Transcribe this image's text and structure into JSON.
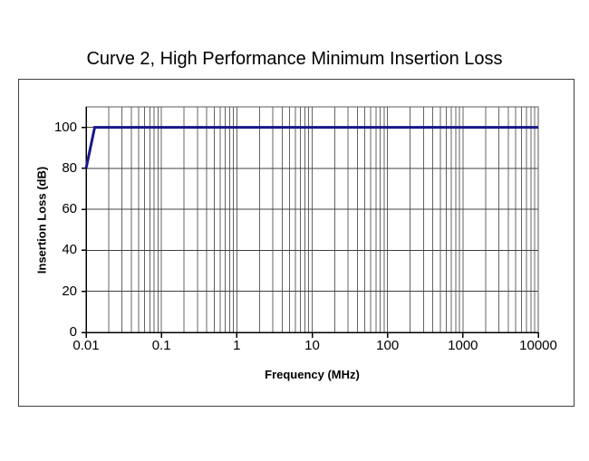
{
  "chart_data": {
    "type": "line",
    "title": "Curve 2, High Performance Minimum Insertion Loss",
    "xlabel": "Frequency (MHz)",
    "ylabel": "Insertion Loss (dB)",
    "x_scale": "log",
    "xlim": [
      0.01,
      10000
    ],
    "ylim": [
      0,
      110
    ],
    "x_ticks": [
      0.01,
      0.1,
      1,
      10,
      100,
      1000,
      10000
    ],
    "x_tick_labels": [
      "0.01",
      "0.1",
      "1",
      "10",
      "100",
      "1000",
      "10000"
    ],
    "y_ticks": [
      0,
      20,
      40,
      60,
      80,
      100
    ],
    "y_tick_labels": [
      "0",
      "20",
      "40",
      "60",
      "80",
      "100"
    ],
    "grid": {
      "horizontal_major": true,
      "vertical_major": true,
      "vertical_minor_log": true,
      "legend": "none"
    },
    "series": [
      {
        "color": "#181889",
        "points": [
          [
            0.01,
            80
          ],
          [
            0.013,
            100
          ],
          [
            10000,
            100
          ]
        ]
      }
    ],
    "colors": {
      "line": "#181889",
      "grid_horizontal": "#404040",
      "grid_vertical": "#646464",
      "axis": "#000000",
      "plot_border": "#5a5a5a",
      "frame_border": "#404040",
      "background": "#ffffff",
      "text": "#000000"
    }
  }
}
